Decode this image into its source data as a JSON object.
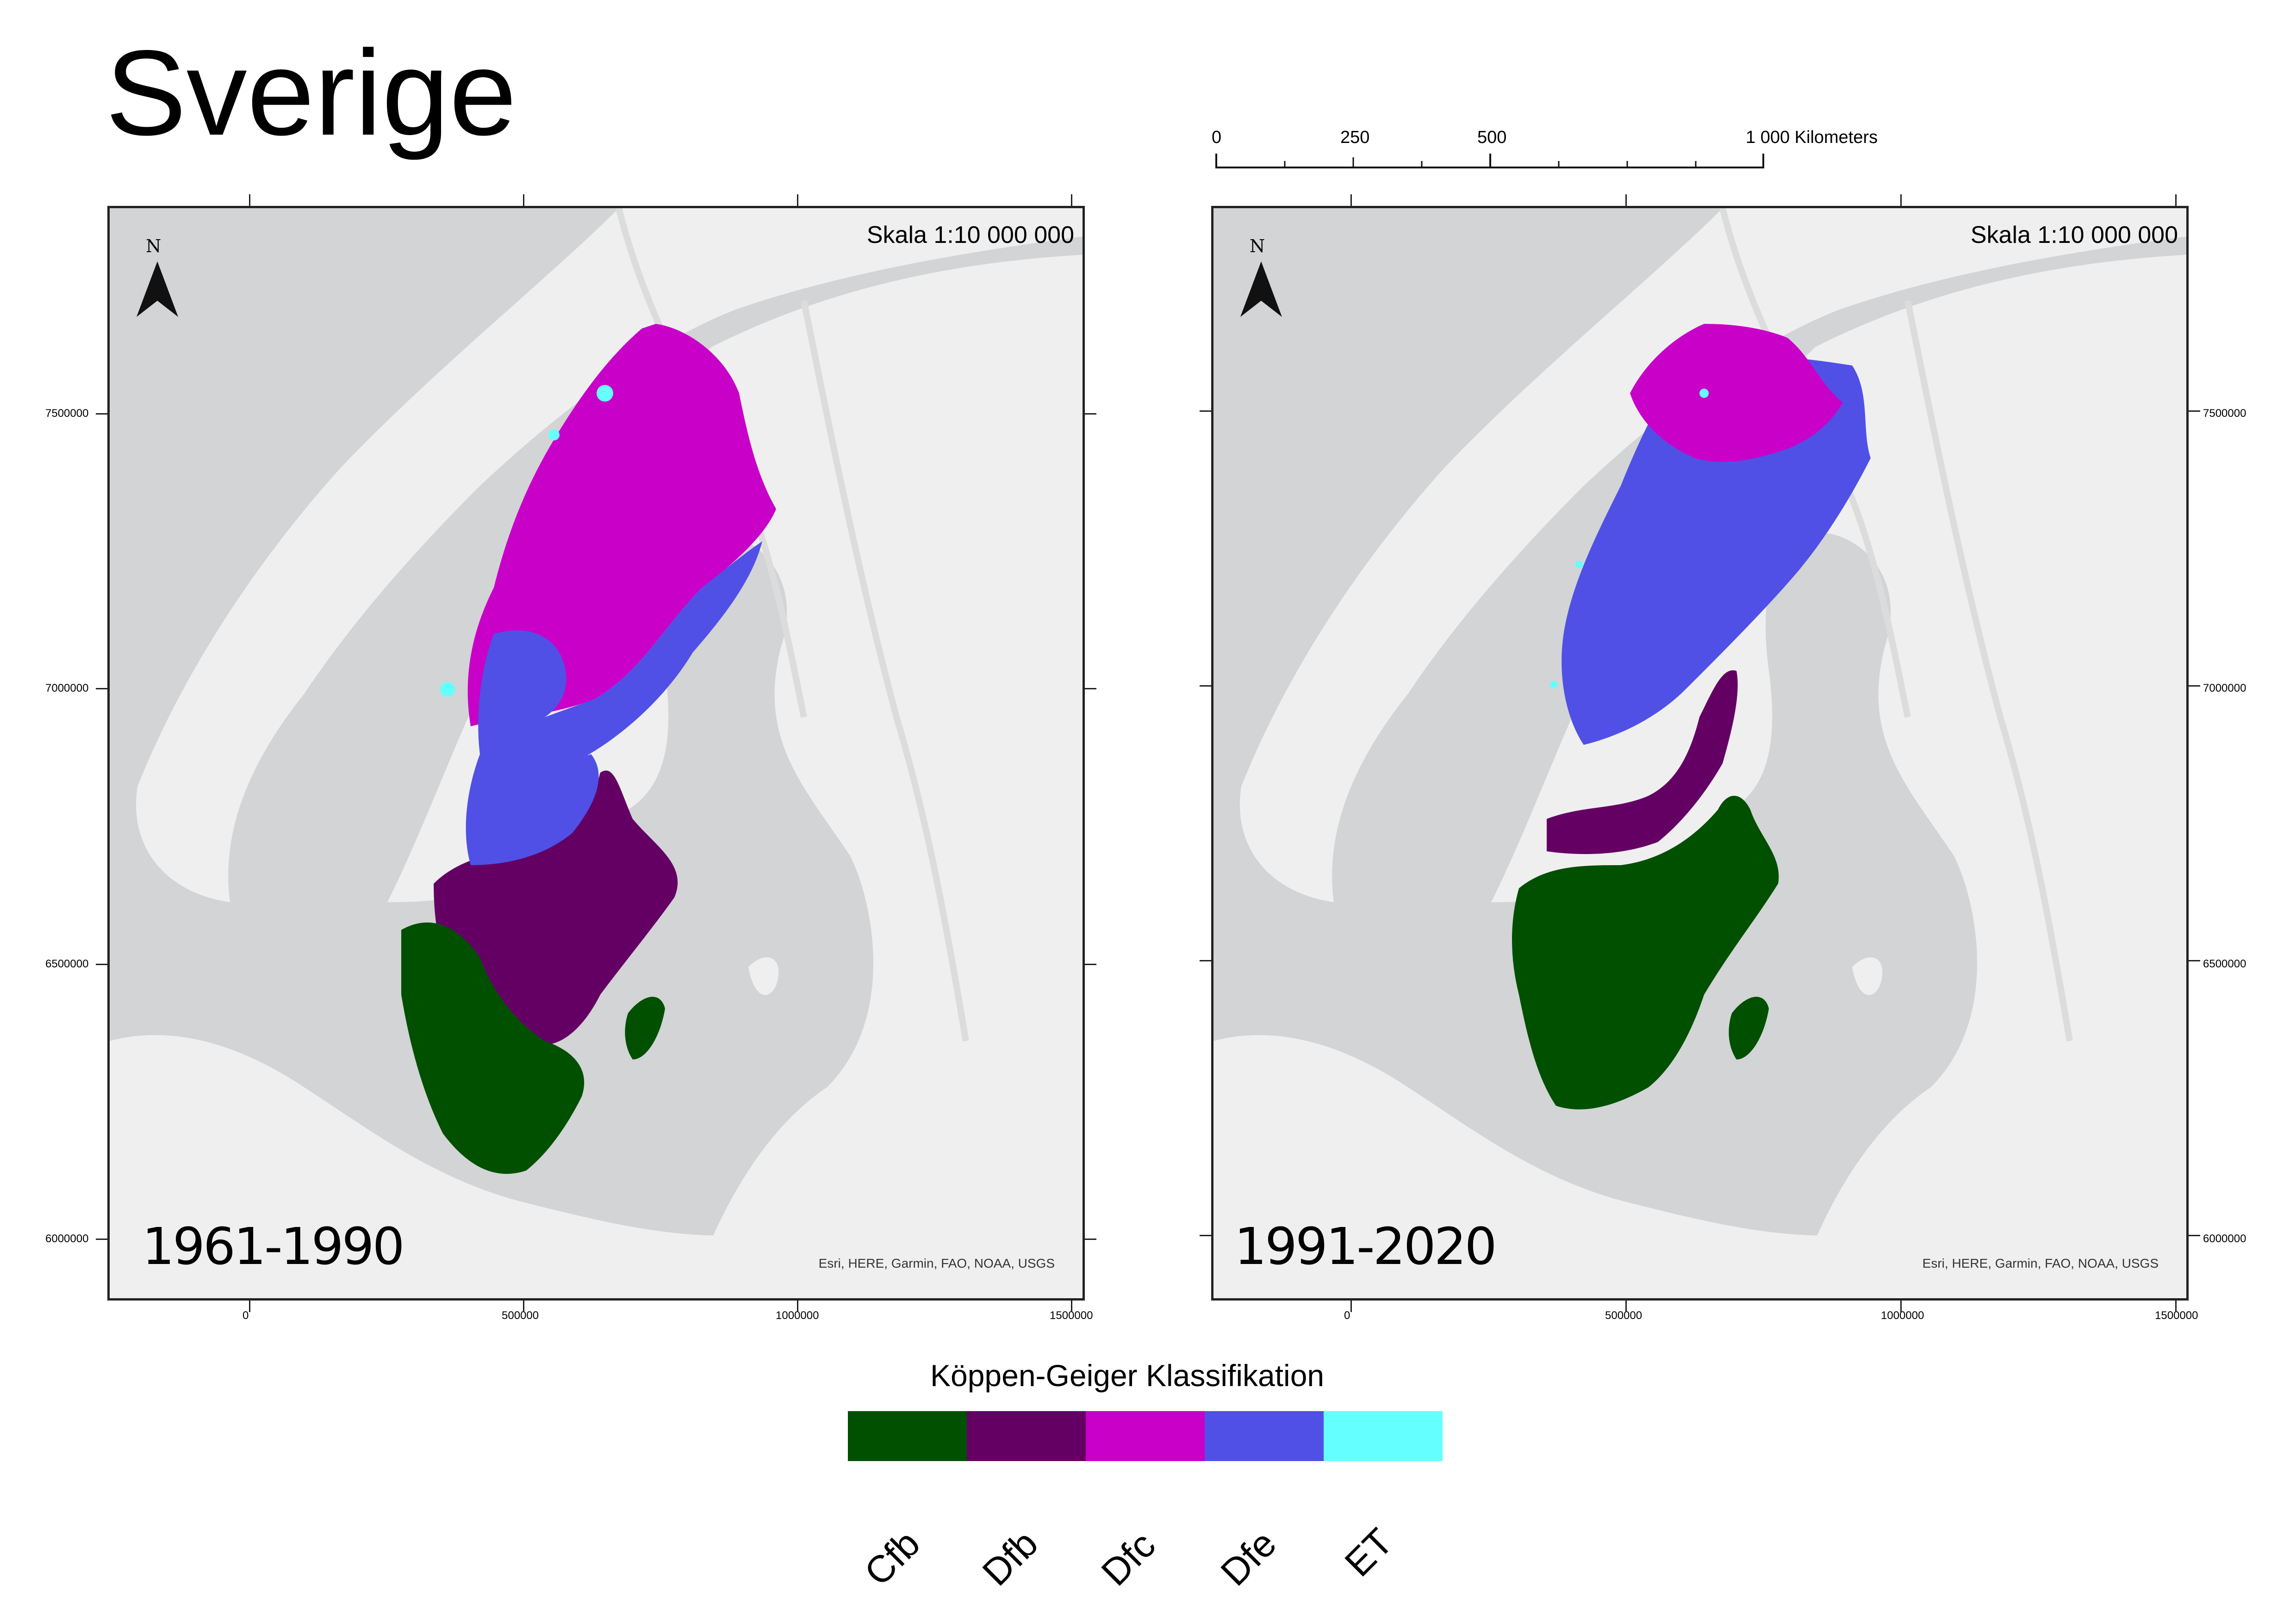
{
  "title": "Sverige",
  "maps": [
    {
      "period": "1961-1990",
      "scale_text": "Skala 1:10 000 000",
      "north": "N",
      "attribution": "Esri, HERE, Garmin, FAO, NOAA, USGS",
      "x_ticks": [
        "0",
        "500000",
        "1000000",
        "1500000"
      ],
      "y_ticks": [
        "7500000",
        "7000000",
        "6500000",
        "6000000"
      ]
    },
    {
      "period": "1991-2020",
      "scale_text": "Skala 1:10 000 000",
      "north": "N",
      "attribution": "Esri, HERE, Garmin, FAO, NOAA, USGS",
      "x_ticks": [
        "0",
        "500000",
        "1000000",
        "1500000"
      ],
      "y_ticks": [
        "7500000",
        "7000000",
        "6500000",
        "6000000"
      ]
    }
  ],
  "scalebar": {
    "labels": [
      "0",
      "250",
      "500",
      "1 000 Kilometers"
    ]
  },
  "legend": {
    "title": "Köppen-Geiger Klassifikation",
    "classes": [
      {
        "label": "Cfb",
        "color": "#005000"
      },
      {
        "label": "Dfb",
        "color": "#640064"
      },
      {
        "label": "Dfc",
        "color": "#c800c8"
      },
      {
        "label": "Dfe",
        "color": "#5050e6"
      },
      {
        "label": "ET",
        "color": "#64ffff"
      }
    ]
  },
  "colors": {
    "land": "#efefef",
    "water": "#d2d4d6",
    "border": "#dcdcdc"
  }
}
